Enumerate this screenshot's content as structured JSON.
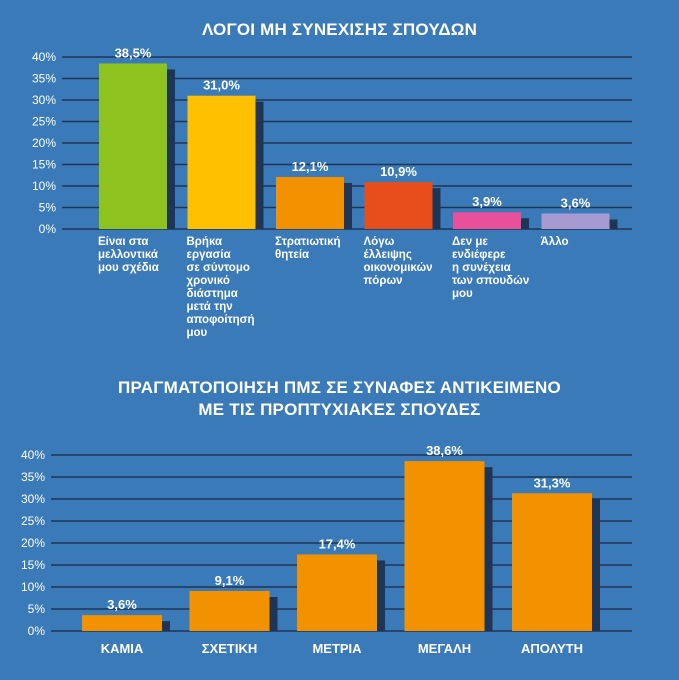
{
  "chart_data": [
    {
      "type": "bar",
      "title": "ΛΟΓΟΙ ΜΗ ΣΥΝΕΧΙΣΗΣ ΣΠΟΥΔΩΝ",
      "categories": [
        "Είναι στα\nμελλοντικά\nμου σχέδια",
        "Βρήκα\nεργασία\nσε σύντομο\nχρονικό\nδιάστημα\nμετά την\nαποφοίτησή\nμου",
        "Στρατιωτική\nθητεία",
        "Λόγω\nέλλειψης\nοικονομικών\nπόρων",
        "Δεν με\nενδιέφερε\nη συνέχεια\nτων σπουδών\nμου",
        "Άλλο"
      ],
      "values": [
        38.5,
        31.0,
        12.1,
        10.9,
        3.9,
        3.6
      ],
      "value_labels": [
        "38,5%",
        "31,0%",
        "12,1%",
        "10,9%",
        "3,9%",
        "3,6%"
      ],
      "colors": [
        "#8dc21f",
        "#ffc000",
        "#f39200",
        "#e84e1b",
        "#e8509a",
        "#a79ad1"
      ],
      "yticks": [
        "0%",
        "5%",
        "10%",
        "15%",
        "20%",
        "25%",
        "30%",
        "35%",
        "40%"
      ],
      "ylim": [
        0,
        40
      ],
      "grid": true,
      "xlabel": "",
      "ylabel": ""
    },
    {
      "type": "bar",
      "title": "ΠΡΑΓΜΑΤΟΠΟΙΗΣΗ ΠΜΣ ΣΕ ΣΥΝΑΦΕΣ ΑΝΤΙΚΕΙΜΕΝΟ\nΜΕ ΤΙΣ ΠΡΟΠΤΥΧΙΑΚΕΣ ΣΠΟΥΔΕΣ",
      "title_lines": [
        "ΠΡΑΓΜΑΤΟΠΟΙΗΣΗ ΠΜΣ ΣΕ ΣΥΝΑΦΕΣ ΑΝΤΙΚΕΙΜΕΝΟ",
        "ΜΕ ΤΙΣ ΠΡΟΠΤΥΧΙΑΚΕΣ ΣΠΟΥΔΕΣ"
      ],
      "categories": [
        "ΚΑΜΙΑ",
        "ΣΧΕΤΙΚΗ",
        "ΜΕΤΡΙΑ",
        "ΜΕΓΑΛΗ",
        "ΑΠΟΛΥΤΗ"
      ],
      "values": [
        3.6,
        9.1,
        17.4,
        38.6,
        31.3
      ],
      "value_labels": [
        "3,6%",
        "9,1%",
        "17,4%",
        "38,6%",
        "31,3%"
      ],
      "colors": [
        "#f39200",
        "#f39200",
        "#f39200",
        "#f39200",
        "#f39200"
      ],
      "yticks": [
        "0%",
        "5%",
        "10%",
        "15%",
        "20%",
        "25%",
        "30%",
        "35%",
        "40%"
      ],
      "ylim": [
        0,
        40
      ],
      "grid": true,
      "xlabel": "",
      "ylabel": ""
    }
  ],
  "style": {
    "background": "#3a7ab8",
    "grid_color": "#1f3556",
    "shadow_color": "#1f3556"
  }
}
